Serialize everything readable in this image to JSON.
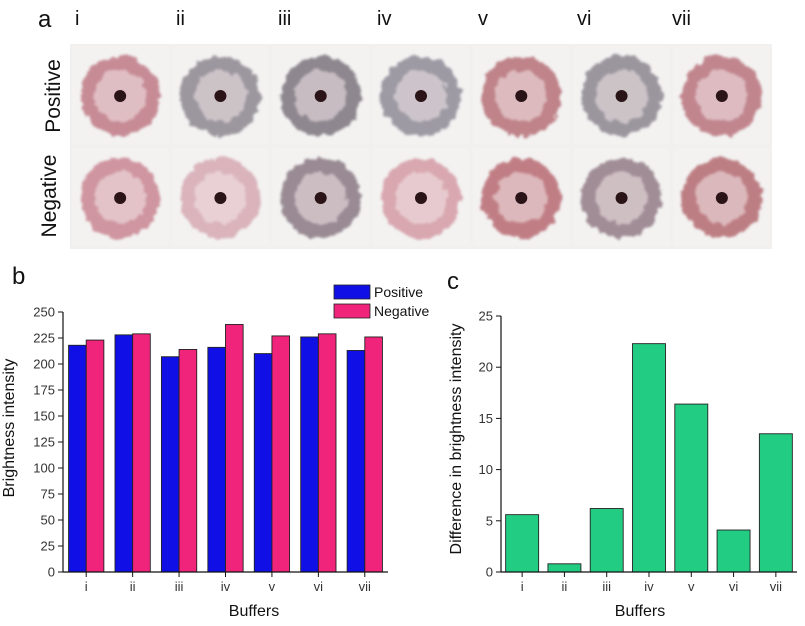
{
  "panel_a": {
    "letter": "a",
    "columns": [
      "i",
      "ii",
      "iii",
      "iv",
      "v",
      "vi",
      "vii"
    ],
    "rows": [
      "Positive",
      "Negative"
    ],
    "spot_colors": {
      "Positive": [
        "#c07a86",
        "#8d8790",
        "#7d757e",
        "#8f8b97",
        "#b66f77",
        "#8c8690",
        "#b9737d"
      ],
      "Negative": [
        "#c98592",
        "#d6a9b2",
        "#8a7983",
        "#d49aa4",
        "#b86a72",
        "#937b86",
        "#b46a70"
      ]
    }
  },
  "chart_data": [
    {
      "type": "bar",
      "letter": "b",
      "categories": [
        "i",
        "ii",
        "iii",
        "iv",
        "v",
        "vi",
        "vii"
      ],
      "series": [
        {
          "name": "Positive",
          "color": "#1010e6",
          "values": [
            218,
            228,
            207,
            216,
            210,
            226,
            213
          ]
        },
        {
          "name": "Negative",
          "color": "#f0247a",
          "values": [
            223,
            229,
            214,
            238,
            227,
            229,
            226
          ]
        }
      ],
      "xlabel": "Buffers",
      "ylabel": "Brightness intensity",
      "ylim": [
        0,
        250
      ],
      "yticks": [
        "0",
        "25",
        "50",
        "75",
        "100",
        "125",
        "150",
        "175",
        "200",
        "225",
        "250"
      ],
      "legend": "top-right",
      "grid": false
    },
    {
      "type": "bar",
      "letter": "c",
      "categories": [
        "i",
        "ii",
        "iii",
        "iv",
        "v",
        "vi",
        "vii"
      ],
      "series": [
        {
          "color": "#22cc82",
          "values": [
            5.6,
            0.8,
            6.2,
            22.3,
            16.4,
            4.1,
            13.5
          ]
        }
      ],
      "xlabel": "Buffers",
      "ylabel": "Difference in brightness intensity",
      "ylim": [
        0,
        25
      ],
      "yticks": [
        "0",
        "5",
        "10",
        "15",
        "20",
        "25"
      ],
      "grid": false
    }
  ]
}
